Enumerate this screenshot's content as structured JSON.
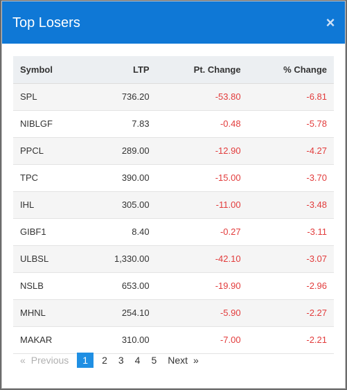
{
  "modal": {
    "title": "Top Losers",
    "close_symbol": "×"
  },
  "table": {
    "headers": {
      "symbol": "Symbol",
      "ltp": "LTP",
      "pt_change": "Pt. Change",
      "pct_change": "% Change"
    },
    "rows": [
      {
        "symbol": "SPL",
        "ltp": "736.20",
        "pt_change": "-53.80",
        "pct_change": "-6.81"
      },
      {
        "symbol": "NIBLGF",
        "ltp": "7.83",
        "pt_change": "-0.48",
        "pct_change": "-5.78"
      },
      {
        "symbol": "PPCL",
        "ltp": "289.00",
        "pt_change": "-12.90",
        "pct_change": "-4.27"
      },
      {
        "symbol": "TPC",
        "ltp": "390.00",
        "pt_change": "-15.00",
        "pct_change": "-3.70"
      },
      {
        "symbol": "IHL",
        "ltp": "305.00",
        "pt_change": "-11.00",
        "pct_change": "-3.48"
      },
      {
        "symbol": "GIBF1",
        "ltp": "8.40",
        "pt_change": "-0.27",
        "pct_change": "-3.11"
      },
      {
        "symbol": "ULBSL",
        "ltp": "1,330.00",
        "pt_change": "-42.10",
        "pct_change": "-3.07"
      },
      {
        "symbol": "NSLB",
        "ltp": "653.00",
        "pt_change": "-19.90",
        "pct_change": "-2.96"
      },
      {
        "symbol": "MHNL",
        "ltp": "254.10",
        "pt_change": "-5.90",
        "pct_change": "-2.27"
      },
      {
        "symbol": "MAKAR",
        "ltp": "310.00",
        "pt_change": "-7.00",
        "pct_change": "-2.21"
      }
    ]
  },
  "pagination": {
    "prev_arrow": "«",
    "previous": "Previous",
    "pages": [
      "1",
      "2",
      "3",
      "4",
      "5"
    ],
    "active_page": "1",
    "next": "Next",
    "next_arrow": "»"
  },
  "colors": {
    "header": "#0f78d6",
    "negative": "#e23b3b",
    "active_page": "#1f8fe3"
  }
}
